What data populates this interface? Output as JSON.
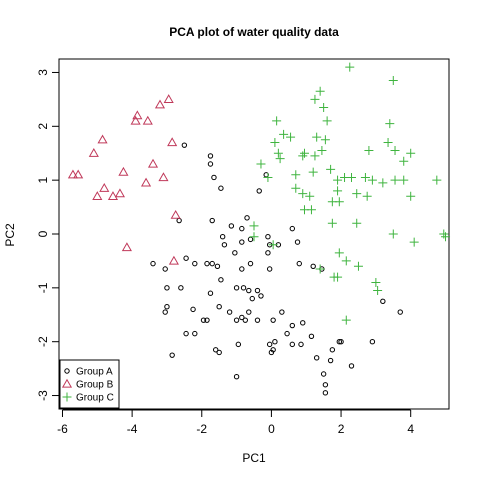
{
  "chart_data": {
    "type": "scatter",
    "title": "PCA plot of water quality data",
    "xlabel": "PC1",
    "ylabel": "PC2",
    "xlim": [
      -6.1,
      5.1
    ],
    "ylim": [
      -3.25,
      3.25
    ],
    "xticks": [
      -6,
      -4,
      -2,
      0,
      2,
      4
    ],
    "yticks": [
      -3,
      -2,
      -1,
      0,
      1,
      2,
      3
    ],
    "xtick_labels": [
      "-6",
      "-4",
      "-2",
      "0",
      "2",
      "4"
    ],
    "ytick_labels": [
      "-3",
      "-2",
      "-1",
      "0",
      "1",
      "2",
      "3"
    ],
    "grid": false,
    "legend_position": "bottom-left",
    "series": [
      {
        "name": "Group A",
        "marker": "circle",
        "color": "#000000",
        "points": [
          [
            -2.5,
            1.65
          ],
          [
            -1.75,
            1.45
          ],
          [
            -1.75,
            1.3
          ],
          [
            -1.65,
            1.05
          ],
          [
            -1.45,
            0.85
          ],
          [
            -0.15,
            1.1
          ],
          [
            -0.35,
            0.8
          ],
          [
            -1.7,
            0.25
          ],
          [
            -1.15,
            0.15
          ],
          [
            -0.7,
            0.3
          ],
          [
            -0.85,
            0.1
          ],
          [
            -2.65,
            0.25
          ],
          [
            -1.4,
            -0.05
          ],
          [
            -1.35,
            -0.2
          ],
          [
            -1.05,
            -0.35
          ],
          [
            -0.85,
            -0.15
          ],
          [
            -0.6,
            -0.1
          ],
          [
            -0.1,
            -0.05
          ],
          [
            0.6,
            0.1
          ],
          [
            0.2,
            -0.2
          ],
          [
            0.75,
            -0.15
          ],
          [
            -3.4,
            -0.55
          ],
          [
            -3.05,
            -0.65
          ],
          [
            -2.45,
            -0.45
          ],
          [
            -2.2,
            -0.55
          ],
          [
            -1.85,
            -0.55
          ],
          [
            -1.7,
            -0.55
          ],
          [
            -1.55,
            -0.6
          ],
          [
            -1.45,
            -0.85
          ],
          [
            -0.85,
            -0.65
          ],
          [
            -0.6,
            -0.55
          ],
          [
            -0.1,
            -0.35
          ],
          [
            -0.05,
            -0.65
          ],
          [
            0.8,
            -0.55
          ],
          [
            1.2,
            -0.6
          ],
          [
            1.45,
            -0.65
          ],
          [
            -3.0,
            -1.0
          ],
          [
            -2.6,
            -1.0
          ],
          [
            -1.75,
            -1.1
          ],
          [
            -1.5,
            -1.35
          ],
          [
            -1.0,
            -1.0
          ],
          [
            -0.8,
            -1.0
          ],
          [
            -0.65,
            -1.05
          ],
          [
            -0.4,
            -1.05
          ],
          [
            -0.55,
            -1.2
          ],
          [
            -0.3,
            -1.15
          ],
          [
            -0.65,
            -1.45
          ],
          [
            -0.85,
            -1.55
          ],
          [
            -3.0,
            -1.35
          ],
          [
            -3.05,
            -1.45
          ],
          [
            -2.25,
            -1.4
          ],
          [
            -1.95,
            -1.6
          ],
          [
            -1.85,
            -1.6
          ],
          [
            -1.2,
            -1.45
          ],
          [
            -1.0,
            -1.6
          ],
          [
            -0.75,
            -1.6
          ],
          [
            -0.4,
            -1.6
          ],
          [
            0.05,
            -1.6
          ],
          [
            0.3,
            -1.45
          ],
          [
            0.6,
            -1.7
          ],
          [
            0.9,
            -1.65
          ],
          [
            0.45,
            -1.85
          ],
          [
            -2.45,
            -1.85
          ],
          [
            -2.2,
            -1.85
          ],
          [
            -1.6,
            -2.15
          ],
          [
            -1.5,
            -2.2
          ],
          [
            -0.95,
            -2.05
          ],
          [
            -0.05,
            -2.05
          ],
          [
            0.1,
            -2.0
          ],
          [
            0.6,
            -2.05
          ],
          [
            0.85,
            -2.05
          ],
          [
            1.15,
            -1.9
          ],
          [
            2.0,
            -2.0
          ],
          [
            2.9,
            -2.0
          ],
          [
            1.95,
            -2.0
          ],
          [
            0.05,
            -2.15
          ],
          [
            0.0,
            -2.2
          ],
          [
            -2.85,
            -2.25
          ],
          [
            -1.0,
            -2.65
          ],
          [
            1.3,
            -2.3
          ],
          [
            1.75,
            -2.15
          ],
          [
            1.7,
            -2.35
          ],
          [
            2.3,
            -2.45
          ],
          [
            1.5,
            -2.6
          ],
          [
            1.55,
            -2.8
          ],
          [
            1.55,
            -2.95
          ],
          [
            3.7,
            -1.45
          ],
          [
            3.2,
            -1.25
          ],
          [
            -0.05,
            -0.2
          ]
        ]
      },
      {
        "name": "Group B",
        "marker": "triangle",
        "color": "#C0395A",
        "points": [
          [
            -5.7,
            1.1
          ],
          [
            -5.55,
            1.1
          ],
          [
            -5.1,
            1.5
          ],
          [
            -4.85,
            1.75
          ],
          [
            -5.0,
            0.7
          ],
          [
            -4.8,
            0.85
          ],
          [
            -4.55,
            0.7
          ],
          [
            -4.35,
            0.75
          ],
          [
            -4.25,
            1.15
          ],
          [
            -3.9,
            2.1
          ],
          [
            -3.85,
            2.2
          ],
          [
            -3.55,
            2.1
          ],
          [
            -3.4,
            1.3
          ],
          [
            -3.2,
            2.4
          ],
          [
            -2.95,
            2.5
          ],
          [
            -2.85,
            1.7
          ],
          [
            -3.1,
            1.05
          ],
          [
            -3.6,
            0.95
          ],
          [
            -2.75,
            0.35
          ],
          [
            -2.8,
            -0.5
          ],
          [
            -4.15,
            -0.25
          ]
        ]
      },
      {
        "name": "Group C",
        "marker": "plus",
        "color": "#3FB43F",
        "points": [
          [
            2.25,
            3.1
          ],
          [
            3.5,
            2.85
          ],
          [
            1.25,
            2.5
          ],
          [
            1.4,
            2.65
          ],
          [
            1.5,
            2.35
          ],
          [
            1.6,
            2.1
          ],
          [
            0.15,
            2.1
          ],
          [
            0.35,
            1.85
          ],
          [
            0.55,
            1.8
          ],
          [
            0.1,
            1.7
          ],
          [
            1.3,
            1.8
          ],
          [
            1.55,
            1.75
          ],
          [
            1.45,
            1.55
          ],
          [
            1.25,
            1.45
          ],
          [
            0.95,
            1.5
          ],
          [
            0.2,
            1.5
          ],
          [
            0.25,
            1.4
          ],
          [
            0.9,
            1.45
          ],
          [
            2.8,
            1.55
          ],
          [
            3.35,
            1.7
          ],
          [
            3.55,
            1.55
          ],
          [
            3.8,
            1.35
          ],
          [
            3.4,
            2.05
          ],
          [
            4.0,
            1.5
          ],
          [
            -0.3,
            1.3
          ],
          [
            -0.1,
            1.05
          ],
          [
            0.7,
            1.1
          ],
          [
            1.2,
            1.15
          ],
          [
            1.7,
            1.2
          ],
          [
            1.9,
            1.0
          ],
          [
            2.1,
            1.05
          ],
          [
            2.3,
            1.05
          ],
          [
            2.7,
            1.05
          ],
          [
            2.9,
            1.0
          ],
          [
            3.2,
            0.95
          ],
          [
            3.55,
            1.0
          ],
          [
            3.8,
            1.0
          ],
          [
            4.75,
            1.0
          ],
          [
            0.7,
            0.85
          ],
          [
            0.9,
            0.75
          ],
          [
            1.1,
            0.7
          ],
          [
            1.9,
            0.8
          ],
          [
            2.45,
            0.75
          ],
          [
            2.75,
            0.7
          ],
          [
            4.0,
            0.7
          ],
          [
            0.95,
            0.45
          ],
          [
            1.15,
            0.45
          ],
          [
            1.75,
            0.6
          ],
          [
            1.95,
            0.6
          ],
          [
            -0.5,
            0.15
          ],
          [
            -0.5,
            -0.05
          ],
          [
            0.05,
            -0.2
          ],
          [
            1.75,
            0.2
          ],
          [
            2.45,
            0.2
          ],
          [
            3.5,
            0.0
          ],
          [
            4.95,
            0.0
          ],
          [
            4.1,
            -0.15
          ],
          [
            5.0,
            -0.05
          ],
          [
            1.95,
            -0.35
          ],
          [
            2.15,
            -0.5
          ],
          [
            2.5,
            -0.6
          ],
          [
            1.4,
            -0.65
          ],
          [
            1.8,
            -0.8
          ],
          [
            1.9,
            -0.8
          ],
          [
            3.0,
            -0.9
          ],
          [
            3.05,
            -1.05
          ],
          [
            2.15,
            -1.6
          ]
        ]
      }
    ]
  }
}
